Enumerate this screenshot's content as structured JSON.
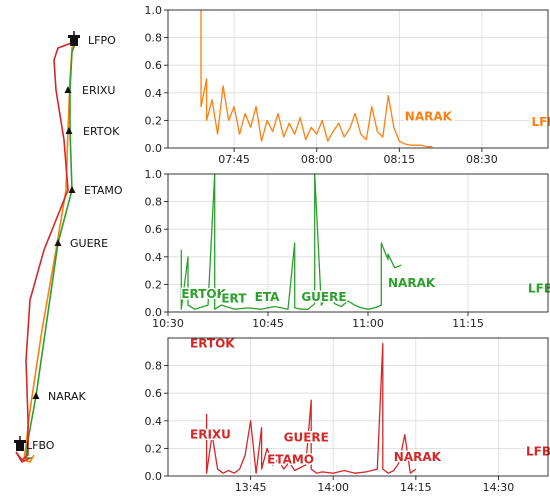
{
  "route_map": {
    "waypoints": [
      {
        "name": "LFPO",
        "kind": "airport"
      },
      {
        "name": "ERIXU",
        "kind": "fix"
      },
      {
        "name": "ERTOK",
        "kind": "fix"
      },
      {
        "name": "ETAMO",
        "kind": "fix"
      },
      {
        "name": "GUERE",
        "kind": "fix"
      },
      {
        "name": "NARAK",
        "kind": "fix"
      },
      {
        "name": "LFBO",
        "kind": "airport"
      }
    ],
    "track_colors": [
      "#ff7f0e",
      "#2ca02c",
      "#d62728"
    ]
  },
  "chart_data": [
    {
      "type": "line",
      "color": "#ff7f0e",
      "ylim": [
        0,
        1.0
      ],
      "yticks": [
        "0.0",
        "0.2",
        "0.4",
        "0.6",
        "0.8",
        "1.0"
      ],
      "xlim": [
        "07:33",
        "08:42"
      ],
      "xticks": [
        "07:45",
        "08:00",
        "08:15",
        "08:30"
      ],
      "series": [
        {
          "x": [
            "07:39",
            "07:39",
            "07:40",
            "07:40",
            "07:41",
            "07:42",
            "07:43",
            "07:44",
            "07:45",
            "07:46",
            "07:47",
            "07:48",
            "07:49",
            "07:50",
            "07:51",
            "07:52",
            "07:53",
            "07:54",
            "07:55",
            "07:56",
            "07:57",
            "07:58",
            "07:59",
            "08:00",
            "08:01",
            "08:02",
            "08:03",
            "08:04",
            "08:05",
            "08:06",
            "08:07",
            "08:08",
            "08:09",
            "08:10",
            "08:11",
            "08:12",
            "08:13",
            "08:14",
            "08:15",
            "08:16",
            "08:17",
            "08:18",
            "08:19",
            "08:20",
            "08:21"
          ],
          "values": [
            1.0,
            0.3,
            0.5,
            0.2,
            0.35,
            0.1,
            0.45,
            0.2,
            0.3,
            0.1,
            0.25,
            0.15,
            0.3,
            0.05,
            0.2,
            0.12,
            0.25,
            0.08,
            0.18,
            0.1,
            0.22,
            0.06,
            0.15,
            0.1,
            0.2,
            0.05,
            0.12,
            0.18,
            0.08,
            0.14,
            0.25,
            0.1,
            0.06,
            0.3,
            0.12,
            0.08,
            0.38,
            0.15,
            0.05,
            0.03,
            0.02,
            0.02,
            0.02,
            0.01,
            0.01
          ]
        }
      ],
      "annotations": [
        {
          "text": "NARAK",
          "x": "08:16",
          "y": 0.2
        },
        {
          "text": "LFBO",
          "x": "08:39",
          "y": 0.16
        }
      ]
    },
    {
      "type": "line",
      "color": "#2ca02c",
      "ylim": [
        0,
        1.0
      ],
      "yticks": [
        "0.0",
        "0.2",
        "0.4",
        "0.6",
        "0.8",
        "1.0"
      ],
      "xlim": [
        "10:30",
        "11:27"
      ],
      "xticks": [
        "10:30",
        "10:45",
        "11:00",
        "11:15"
      ],
      "series": [
        {
          "x": [
            "10:32",
            "10:32",
            "10:33",
            "10:33",
            "10:34",
            "10:36",
            "10:37",
            "10:37",
            "10:38",
            "10:40",
            "10:42",
            "10:44",
            "10:46",
            "10:48",
            "10:49",
            "10:49",
            "10:50",
            "10:51",
            "10:52",
            "10:52",
            "10:53",
            "10:54",
            "10:55",
            "10:56",
            "10:57",
            "10:58",
            "10:59",
            "11:00",
            "11:01",
            "11:02",
            "11:02",
            "11:03",
            "11:03",
            "11:04",
            "11:05"
          ],
          "values": [
            0.45,
            0.02,
            0.4,
            0.05,
            0.02,
            0.05,
            1.0,
            0.02,
            0.05,
            0.02,
            0.03,
            0.02,
            0.04,
            0.02,
            0.5,
            0.03,
            0.02,
            0.02,
            0.06,
            1.0,
            0.05,
            0.12,
            0.06,
            0.04,
            0.08,
            0.05,
            0.03,
            0.02,
            0.03,
            0.05,
            0.5,
            0.38,
            0.42,
            0.32,
            0.34
          ]
        }
      ],
      "annotations": [
        {
          "text": "ERTOK",
          "x": "10:32",
          "y": 0.1
        },
        {
          "text": "ERT",
          "x": "10:38",
          "y": 0.07
        },
        {
          "text": "ETA",
          "x": "10:43",
          "y": 0.08
        },
        {
          "text": "GUERE",
          "x": "10:50",
          "y": 0.08
        },
        {
          "text": "NARAK",
          "x": "11:03",
          "y": 0.18
        },
        {
          "text": "LFBO",
          "x": "11:24",
          "y": 0.14
        }
      ]
    },
    {
      "type": "line",
      "color": "#d62728",
      "ylim": [
        0,
        1.0
      ],
      "yticks": [
        "0.0",
        "0.2",
        "0.4",
        "0.6",
        "0.8"
      ],
      "xlim": [
        "13:30",
        "14:39"
      ],
      "xticks": [
        "13:45",
        "14:00",
        "14:15",
        "14:30"
      ],
      "series": [
        {
          "x": [
            "13:37",
            "13:37",
            "13:38",
            "13:39",
            "13:40",
            "13:41",
            "13:42",
            "13:43",
            "13:44",
            "13:45",
            "13:46",
            "13:47",
            "13:47",
            "13:48",
            "13:49",
            "13:50",
            "13:51",
            "13:52",
            "13:53",
            "13:54",
            "13:55",
            "13:56",
            "13:56",
            "13:57",
            "13:58",
            "14:00",
            "14:02",
            "14:04",
            "14:06",
            "14:08",
            "14:09",
            "14:09",
            "14:10",
            "14:11",
            "14:12",
            "14:13",
            "14:14",
            "14:15"
          ],
          "values": [
            0.45,
            0.02,
            0.3,
            0.05,
            0.02,
            0.04,
            0.02,
            0.05,
            0.15,
            0.4,
            0.02,
            0.35,
            0.05,
            0.2,
            0.08,
            0.12,
            0.05,
            0.1,
            0.04,
            0.06,
            0.08,
            0.55,
            0.05,
            0.02,
            0.03,
            0.02,
            0.04,
            0.02,
            0.03,
            0.05,
            0.96,
            0.05,
            0.02,
            0.04,
            0.1,
            0.3,
            0.02,
            0.05
          ]
        }
      ],
      "annotations": [
        {
          "text": "ERTOK",
          "x": "13:34",
          "y": 0.93
        },
        {
          "text": "ERIXU",
          "x": "13:34",
          "y": 0.27
        },
        {
          "text": "GUERE",
          "x": "13:51",
          "y": 0.25
        },
        {
          "text": "ETAMO",
          "x": "13:48",
          "y": 0.09
        },
        {
          "text": "NARAK",
          "x": "14:11",
          "y": 0.11
        },
        {
          "text": "LFBO",
          "x": "14:35",
          "y": 0.15
        }
      ]
    }
  ]
}
